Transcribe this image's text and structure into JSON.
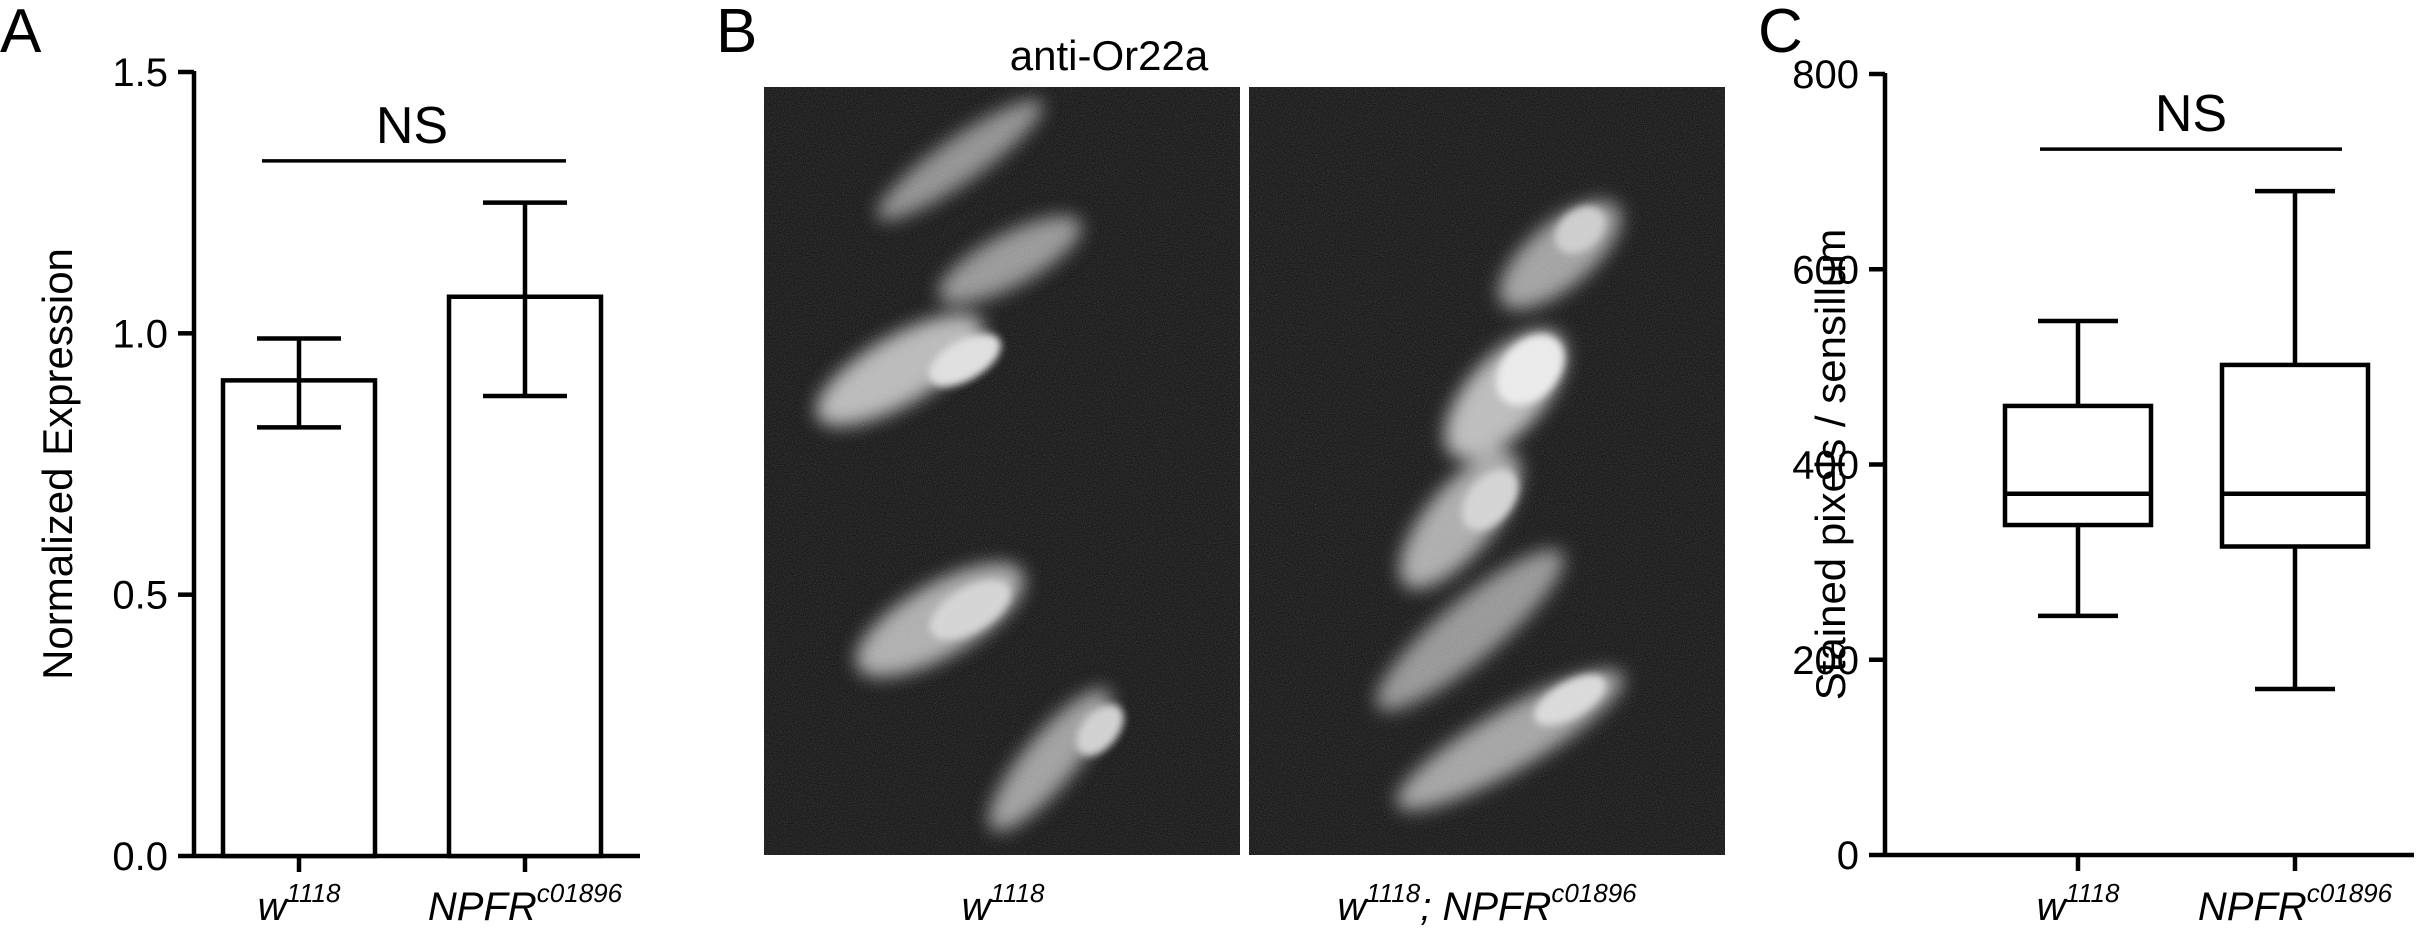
{
  "panels": {
    "a": {
      "letter": "A"
    },
    "b": {
      "letter": "B",
      "title": "anti-Or22a",
      "images": [
        {
          "label_base": "w",
          "label_sup": "1118",
          "label_rest": "",
          "label_rest_sup": ""
        },
        {
          "label_base": "w",
          "label_sup": "1118",
          "label_rest": "; NPFR",
          "label_rest_sup": "c01896"
        }
      ]
    },
    "c": {
      "letter": "C"
    }
  },
  "chart_data": [
    {
      "type": "bar",
      "panel": "A",
      "ylabel": "Normalized Expression",
      "ylim": [
        0,
        1.5
      ],
      "yticks": [
        0.0,
        0.5,
        1.0,
        1.5
      ],
      "ytick_labels": [
        "0.0",
        "0.5",
        "1.0",
        "1.5"
      ],
      "categories": [
        {
          "base": "w",
          "sup": "1118"
        },
        {
          "base": "NPFR",
          "sup": "c01896"
        }
      ],
      "values": [
        0.91,
        1.07
      ],
      "error_low": [
        0.82,
        0.88
      ],
      "error_high": [
        0.99,
        1.25
      ],
      "annotation": {
        "text": "NS",
        "line_y": 1.33
      },
      "grid": false
    },
    {
      "type": "box",
      "panel": "C",
      "ylabel": "Stained pixels / sensillum",
      "ylim": [
        0,
        800
      ],
      "yticks": [
        0,
        200,
        400,
        600,
        800
      ],
      "ytick_labels": [
        "0",
        "200",
        "400",
        "600",
        "800"
      ],
      "categories": [
        {
          "base": "w",
          "sup": "1118"
        },
        {
          "base": "NPFR",
          "sup": "c01896"
        }
      ],
      "boxes": [
        {
          "min": 245,
          "q1": 338,
          "median": 370,
          "q3": 460,
          "max": 547
        },
        {
          "min": 170,
          "q1": 316,
          "median": 370,
          "q3": 502,
          "max": 680
        }
      ],
      "annotation": {
        "text": "NS",
        "line_y": 723
      },
      "grid": false
    }
  ]
}
